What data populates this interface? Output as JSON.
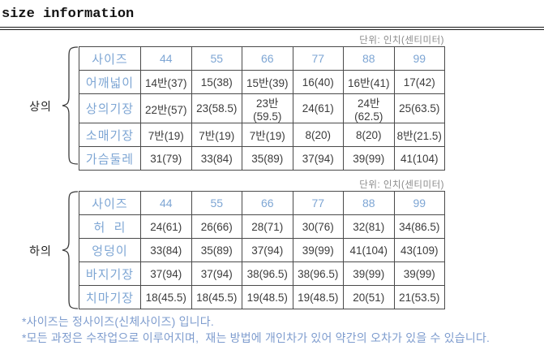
{
  "title": "size information",
  "tables": [
    {
      "group_label": "상의",
      "unit_label": "단위: 인치(센티미터)",
      "header": [
        "사이즈",
        "44",
        "55",
        "66",
        "77",
        "88",
        "99"
      ],
      "rows": [
        {
          "label": "어깨넓이",
          "values": [
            "14반(37)",
            "15(38)",
            "15반(39)",
            "16(40)",
            "16반(41)",
            "17(42)"
          ]
        },
        {
          "label": "상의기장",
          "values": [
            "22반(57)",
            "23(58.5)",
            "23반(59.5)",
            "24(61)",
            "24반(62.5)",
            "25(63.5)"
          ]
        },
        {
          "label": "소매기장",
          "values": [
            "7반(19)",
            "7반(19)",
            "7반(19)",
            "8(20)",
            "8(20)",
            "8반(21.5)"
          ]
        },
        {
          "label": "가슴둘레",
          "values": [
            "31(79)",
            "33(84)",
            "35(89)",
            "37(94)",
            "39(99)",
            "41(104)"
          ]
        }
      ]
    },
    {
      "group_label": "하의",
      "unit_label": "단위: 인치(센티미터)",
      "header": [
        "사이즈",
        "44",
        "55",
        "66",
        "77",
        "88",
        "99"
      ],
      "rows": [
        {
          "label": "허  리",
          "values": [
            "24(61)",
            "26(66)",
            "28(71)",
            "30(76)",
            "32(81)",
            "34(86.5)"
          ]
        },
        {
          "label": "엉덩이",
          "values": [
            "33(84)",
            "35(89)",
            "37(94)",
            "39(99)",
            "41(104)",
            "43(109)"
          ]
        },
        {
          "label": "바지기장",
          "values": [
            "37(94)",
            "37(94)",
            "38(96.5)",
            "38(96.5)",
            "39(99)",
            "39(99)"
          ]
        },
        {
          "label": "치마기장",
          "values": [
            "18(45.5)",
            "18(45.5)",
            "19(48.5)",
            "19(48.5)",
            "20(51)",
            "21(53.5)"
          ]
        }
      ]
    }
  ],
  "notes": [
    "*사이즈는 정사이즈(신체사이즈) 입니다.",
    "*모든 과정은 수작업으로 이루어지며,  재는 방법에 개인차가 있어 약간의 오차가 있을 수 있습니다."
  ],
  "colors": {
    "accent_blue": "#7EA6D4",
    "data_text": "#3C3C3C",
    "border": "#4A4A4A",
    "unit_text": "#8A8A8A",
    "note_text": "#7E9CCE"
  }
}
